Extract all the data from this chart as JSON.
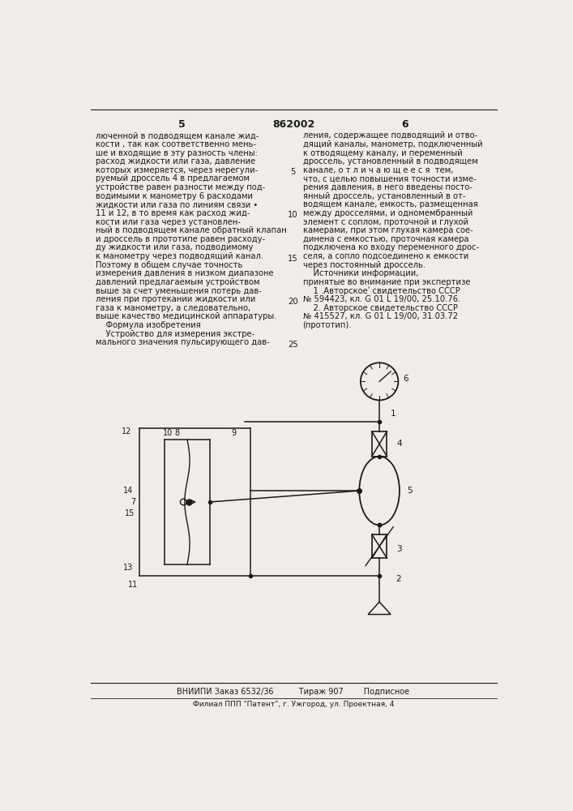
{
  "bg_color": "#f0ede8",
  "text_color": "#1a1a1a",
  "page_number_left": "5",
  "page_number_center": "862002",
  "page_number_right": "6",
  "col1_lines": [
    "люченной в подводящем канале жид-",
    "кости , так как соответственно мень-",
    "ше и входящие в эту разность члены:",
    "расход жидкости или газа, давление",
    "которых измеряется, через нерегули-",
    "руемый дроссель 4 в предлагаемом",
    "устройстве равен разности между под-",
    "водимыми к манометру 6 расходами",
    "жидкости или газа по линиям связи •",
    "11 и 12, в то время как расход жид-",
    "кости или газа через установлен-",
    "ный в подводящем канале обратный клапан",
    "и дроссель в прототипе равен расходу-",
    "ду жидкости или газа, подводимому",
    "к манометру через подводящий канал.",
    "Поэтому в общем случае точность",
    "измерения давления в низком диапазоне",
    "давлений предлагаемым устройством",
    "выше за счет уменьшения потерь дав-",
    "ления при протекании жидкости или",
    "газа к манометру, а следовательно,",
    "выше качество медицинской аппаратуры.",
    "    Формула изобретения",
    "    Устройство для измерения экстре-",
    "мального значения пульсирующего дав-"
  ],
  "col2_lines": [
    "ления, содержащее подводящий и отво-",
    "дящий каналы, манометр, подключенный",
    "к отводящему каналу, и переменный",
    "дроссель, установленный в подводящем",
    "канале, о т л и ч а ю щ е е с я  тем,",
    "что, с целью повышения точности изме-",
    "рения давления, в него введены посто-",
    "янный дроссель, установленный в от-",
    "водящем канале, емкость, размещенная",
    "между дросселями, и одномембранный",
    "элемент с соплом, проточной и глухой",
    "камерами, при этом глухая камера сое-",
    "динена с емкостью, проточная камера",
    "подключена ко входу переменного дрос-",
    "селя, а сопло подсоединено к емкости",
    "через постоянный дроссель.",
    "    Источники информации,",
    "принятые во внимание при экспертизе",
    "    1 .Авторскоеʹ свидетельство СССР",
    "№ 594423, кл. G 01 L 19/00, 25.10.76.",
    "    2. Авторское свидетельство СССР",
    "№ 415527, кл. G 01 L 19/00, 31.03.72",
    "(прототип)."
  ],
  "footer_line1": "ВНИИПИ Заказ 6532/36          Тираж 907        Подписное",
  "footer_line2": "Филиал ППП \"Патент\", г. Ужгород, ул. Проектная, 4"
}
